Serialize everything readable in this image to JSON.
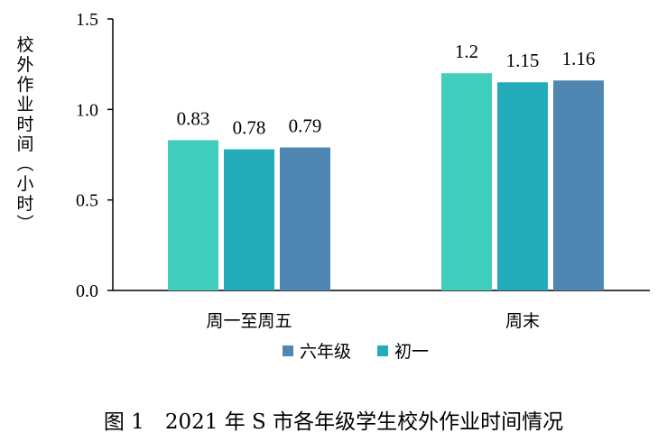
{
  "caption": "图 1　2021 年 S 市各年级学生校外作业时间情况",
  "chart_data": {
    "type": "bar",
    "ylabel": "校外作业时间（小时）",
    "ylim": [
      0,
      1.5
    ],
    "yticks": [
      "0.0",
      "0.5",
      "1.0",
      "1.5"
    ],
    "categories": [
      "周一至周五",
      "周末"
    ],
    "series": [
      {
        "name": "",
        "values": [
          0.83,
          1.2
        ],
        "labels": [
          "0.83",
          "1.2"
        ],
        "color": "#41CEBC"
      },
      {
        "name": "初一",
        "values": [
          0.78,
          1.15
        ],
        "labels": [
          "0.78",
          "1.15"
        ],
        "color": "#23ABB9"
      },
      {
        "name": "六年级",
        "values": [
          0.79,
          1.16
        ],
        "labels": [
          "0.79",
          "1.16"
        ],
        "color": "#4F86B2"
      }
    ],
    "legend": {
      "position": "bottom",
      "entries": [
        {
          "name": "六年级",
          "color": "#4F86B2"
        },
        {
          "name": "初一",
          "color": "#23ABB9"
        }
      ]
    },
    "grid": false
  }
}
